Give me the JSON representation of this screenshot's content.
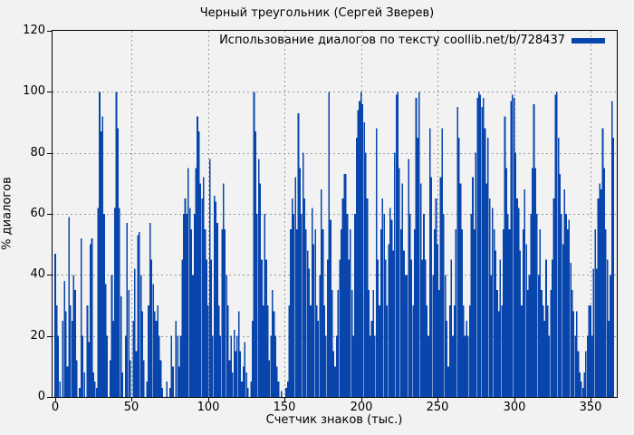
{
  "title": "Черный треугольник (Сергей Зверев)",
  "legend": {
    "label": "Использование диалогов по тексту coollib.net/b/728437"
  },
  "axes": {
    "y_label": "% диалогов",
    "x_label": "Счетчик знаков (тыс.)",
    "y_ticks": [
      0,
      20,
      40,
      60,
      80,
      100,
      120
    ],
    "x_ticks": [
      0,
      50,
      100,
      150,
      200,
      250,
      300,
      350
    ]
  },
  "colors": {
    "series": "#0845ac",
    "background": "#f2f2f2",
    "grid": "#9a9a9a",
    "border": "#000000",
    "text": "#000000"
  },
  "chart_data": {
    "type": "bar",
    "subtype": "impulses",
    "title": "Черный треугольник (Сергей Зверев)",
    "series_name": "Использование диалогов по тексту coollib.net/b/728437",
    "xlabel": "Счетчик знаков (тыс.)",
    "ylabel": "% диалогов",
    "xlim": [
      0,
      367
    ],
    "ylim": [
      0,
      120
    ],
    "grid": true,
    "legend_position": "top-right",
    "x_start": 0,
    "x_step": 1,
    "values": [
      47,
      30,
      20,
      5,
      0,
      25,
      38,
      28,
      10,
      59,
      30,
      25,
      40,
      35,
      12,
      0,
      3,
      52,
      20,
      8,
      0,
      30,
      18,
      50,
      52,
      8,
      5,
      3,
      62,
      100,
      87,
      92,
      60,
      37,
      20,
      0,
      12,
      40,
      25,
      62,
      100,
      88,
      62,
      33,
      8,
      0,
      20,
      57,
      35,
      12,
      0,
      25,
      42,
      15,
      53,
      54,
      40,
      28,
      12,
      0,
      5,
      30,
      57,
      45,
      37,
      28,
      25,
      30,
      20,
      12,
      3,
      0,
      0,
      5,
      0,
      3,
      20,
      10,
      0,
      25,
      20,
      10,
      20,
      45,
      60,
      65,
      60,
      75,
      62,
      55,
      40,
      60,
      75,
      92,
      87,
      70,
      65,
      72,
      55,
      45,
      30,
      78,
      45,
      20,
      66,
      64,
      57,
      30,
      20,
      55,
      70,
      55,
      40,
      30,
      12,
      20,
      8,
      22,
      15,
      20,
      28,
      15,
      5,
      10,
      18,
      8,
      3,
      0,
      5,
      25,
      100,
      87,
      60,
      78,
      70,
      45,
      30,
      60,
      45,
      30,
      12,
      20,
      35,
      28,
      20,
      10,
      5,
      0,
      2,
      0,
      0,
      3,
      5,
      30,
      55,
      65,
      60,
      72,
      55,
      93,
      75,
      60,
      80,
      65,
      55,
      48,
      42,
      30,
      62,
      50,
      55,
      30,
      25,
      40,
      68,
      55,
      30,
      20,
      45,
      100,
      58,
      35,
      15,
      10,
      20,
      35,
      45,
      55,
      65,
      73,
      73,
      60,
      45,
      55,
      35,
      20,
      60,
      85,
      94,
      97,
      100,
      96,
      90,
      80,
      65,
      35,
      20,
      25,
      35,
      20,
      88,
      45,
      30,
      55,
      65,
      60,
      45,
      30,
      50,
      62,
      58,
      48,
      80,
      99,
      100,
      75,
      55,
      70,
      48,
      40,
      40,
      78,
      60,
      45,
      30,
      55,
      98,
      85,
      100,
      70,
      45,
      60,
      45,
      30,
      20,
      88,
      72,
      40,
      55,
      65,
      50,
      35,
      72,
      88,
      60,
      40,
      25,
      10,
      30,
      45,
      20,
      30,
      55,
      95,
      85,
      70,
      55,
      30,
      20,
      25,
      20,
      30,
      60,
      72,
      55,
      80,
      98,
      100,
      99,
      95,
      98,
      88,
      70,
      85,
      65,
      40,
      62,
      55,
      48,
      35,
      28,
      45,
      30,
      55,
      92,
      75,
      60,
      55,
      97,
      99,
      98,
      80,
      65,
      62,
      48,
      30,
      55,
      68,
      50,
      35,
      40,
      60,
      75,
      96,
      75,
      60,
      40,
      55,
      35,
      30,
      25,
      45,
      30,
      20,
      35,
      45,
      65,
      99,
      100,
      85,
      73,
      60,
      50,
      68,
      60,
      55,
      58,
      44,
      35,
      28,
      20,
      28,
      15,
      8,
      5,
      3,
      8,
      15,
      20,
      30,
      30,
      20,
      42,
      55,
      42,
      65,
      70,
      68,
      88,
      75,
      55,
      45,
      25,
      40,
      97,
      85
    ]
  }
}
